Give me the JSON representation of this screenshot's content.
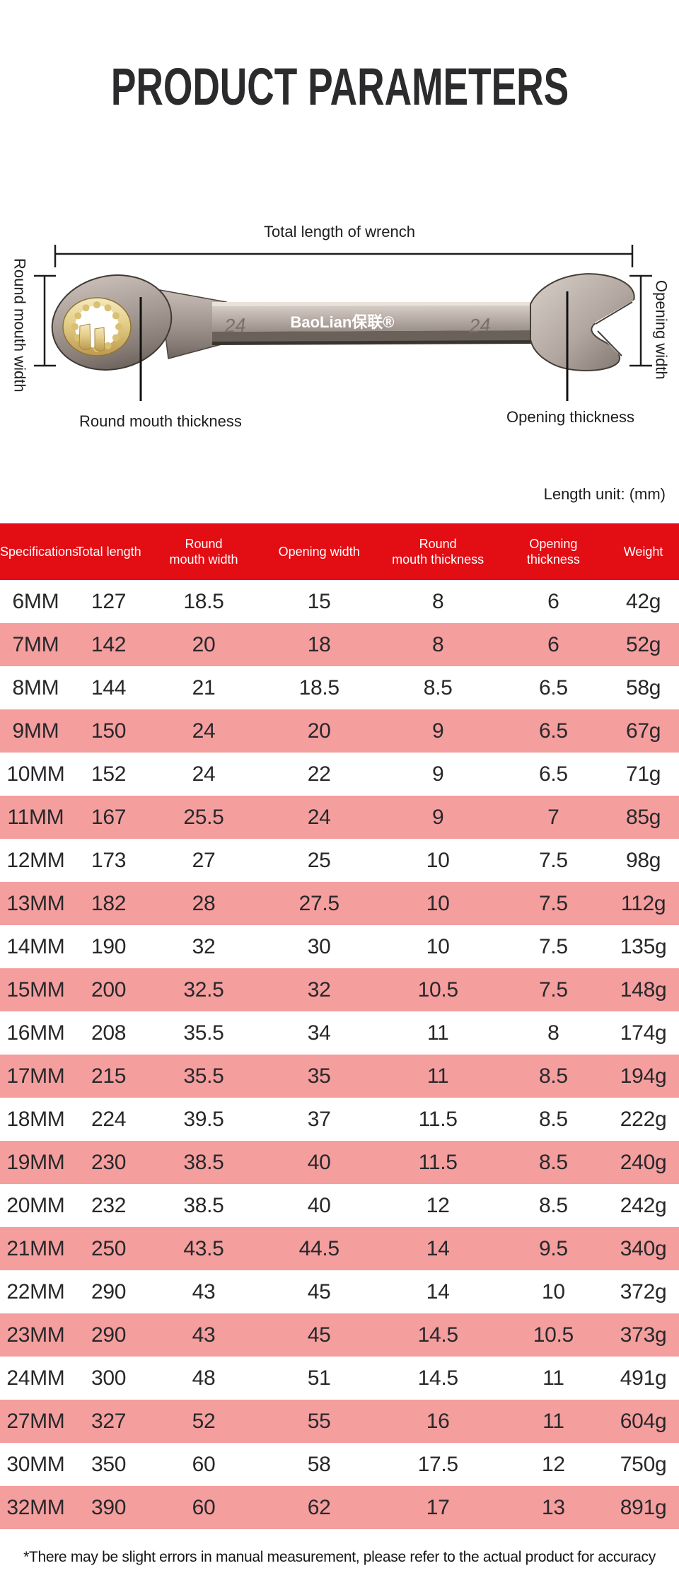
{
  "page": {
    "title": "PRODUCT PARAMETERS",
    "length_unit_note": "Length unit: (mm)",
    "footnote": "*There may be slight errors in manual measurement, please refer to the actual product for accuracy"
  },
  "diagram": {
    "annotations": {
      "total_length": "Total length of wrench",
      "round_mouth_width": "Round mouth width",
      "round_mouth_thickness": "Round mouth thickness",
      "opening_thickness": "Opening thickness",
      "opening_width": "Opening width"
    },
    "wrench": {
      "brand": "BaoLian保联®",
      "size_marking": "24"
    }
  },
  "table": {
    "columns": [
      "Specifications",
      "Total length",
      "Round\nmouth width",
      "Opening width",
      "Round\nmouth thickness",
      "Opening\nthickness",
      "Weight"
    ],
    "rows": [
      [
        "6MM",
        "127",
        "18.5",
        "15",
        "8",
        "6",
        "42g"
      ],
      [
        "7MM",
        "142",
        "20",
        "18",
        "8",
        "6",
        "52g"
      ],
      [
        "8MM",
        "144",
        "21",
        "18.5",
        "8.5",
        "6.5",
        "58g"
      ],
      [
        "9MM",
        "150",
        "24",
        "20",
        "9",
        "6.5",
        "67g"
      ],
      [
        "10MM",
        "152",
        "24",
        "22",
        "9",
        "6.5",
        "71g"
      ],
      [
        "11MM",
        "167",
        "25.5",
        "24",
        "9",
        "7",
        "85g"
      ],
      [
        "12MM",
        "173",
        "27",
        "25",
        "10",
        "7.5",
        "98g"
      ],
      [
        "13MM",
        "182",
        "28",
        "27.5",
        "10",
        "7.5",
        "112g"
      ],
      [
        "14MM",
        "190",
        "32",
        "30",
        "10",
        "7.5",
        "135g"
      ],
      [
        "15MM",
        "200",
        "32.5",
        "32",
        "10.5",
        "7.5",
        "148g"
      ],
      [
        "16MM",
        "208",
        "35.5",
        "34",
        "11",
        "8",
        "174g"
      ],
      [
        "17MM",
        "215",
        "35.5",
        "35",
        "11",
        "8.5",
        "194g"
      ],
      [
        "18MM",
        "224",
        "39.5",
        "37",
        "11.5",
        "8.5",
        "222g"
      ],
      [
        "19MM",
        "230",
        "38.5",
        "40",
        "11.5",
        "8.5",
        "240g"
      ],
      [
        "20MM",
        "232",
        "38.5",
        "40",
        "12",
        "8.5",
        "242g"
      ],
      [
        "21MM",
        "250",
        "43.5",
        "44.5",
        "14",
        "9.5",
        "340g"
      ],
      [
        "22MM",
        "290",
        "43",
        "45",
        "14",
        "10",
        "372g"
      ],
      [
        "23MM",
        "290",
        "43",
        "45",
        "14.5",
        "10.5",
        "373g"
      ],
      [
        "24MM",
        "300",
        "48",
        "51",
        "14.5",
        "11",
        "491g"
      ],
      [
        "27MM",
        "327",
        "52",
        "55",
        "16",
        "11",
        "604g"
      ],
      [
        "30MM",
        "350",
        "60",
        "58",
        "17.5",
        "12",
        "750g"
      ],
      [
        "32MM",
        "390",
        "60",
        "62",
        "17",
        "13",
        "891g"
      ]
    ]
  },
  "colors": {
    "header_red": "#e30d14",
    "row_pink": "#f49e9e",
    "table_text": "#28282b",
    "gold": "#d9c171",
    "metal": "#a89d96"
  }
}
